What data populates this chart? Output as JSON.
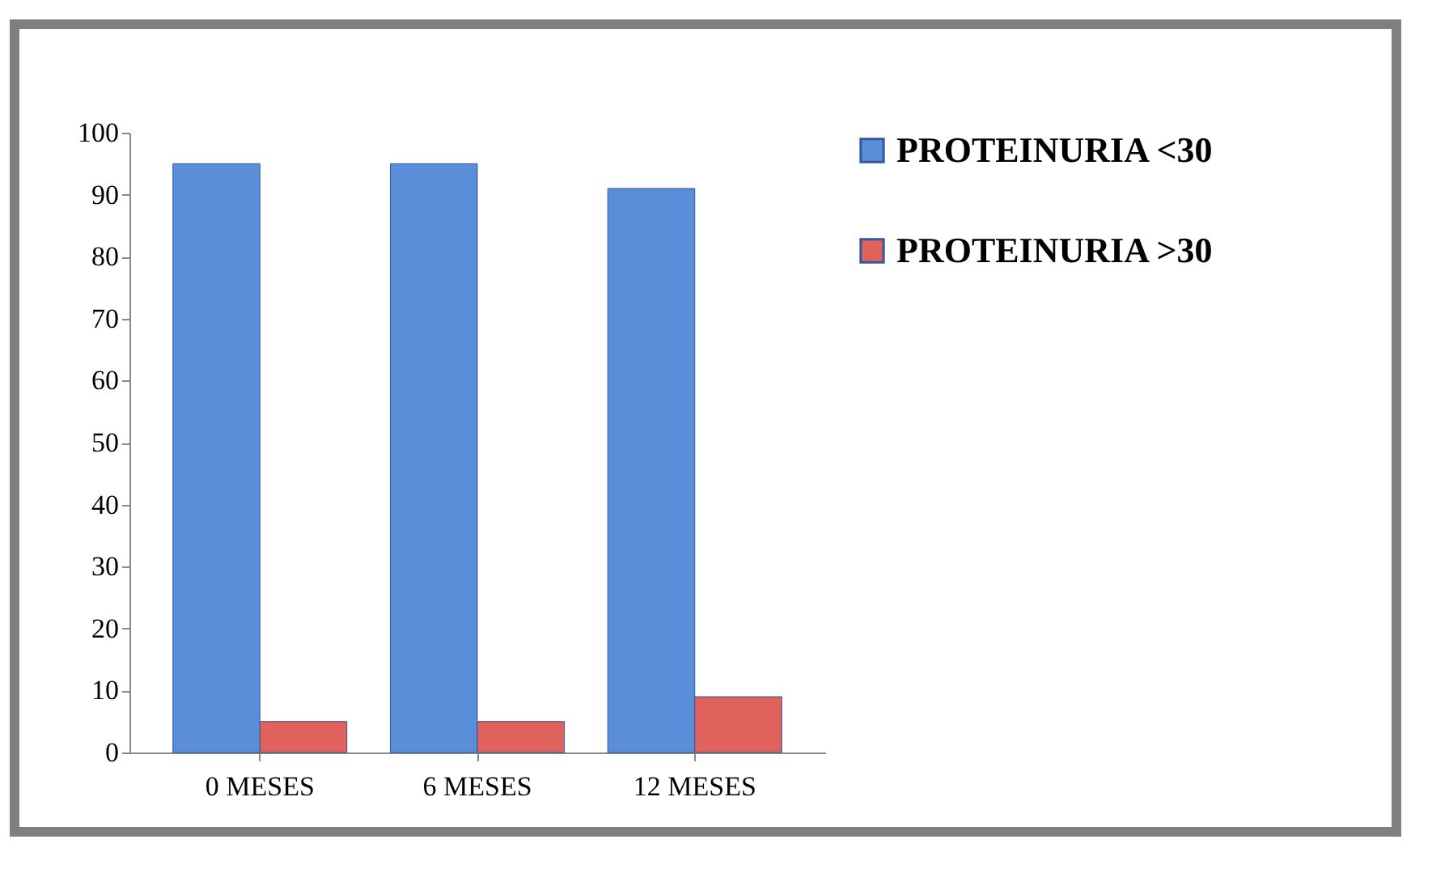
{
  "chart_data": {
    "type": "bar",
    "categories": [
      "0 MESES",
      "6 MESES",
      "12 MESES"
    ],
    "series": [
      {
        "name": "PROTEINURIA <30",
        "color": "#5b8ed8",
        "values": [
          95,
          95,
          91
        ]
      },
      {
        "name": "PROTEINURIA >30",
        "color": "#e0625c",
        "values": [
          5,
          5,
          9
        ]
      }
    ],
    "ylim": [
      0,
      100
    ],
    "yticks": [
      0,
      10,
      20,
      30,
      40,
      50,
      60,
      70,
      80,
      90,
      100
    ],
    "grid": false,
    "legend": "right"
  }
}
